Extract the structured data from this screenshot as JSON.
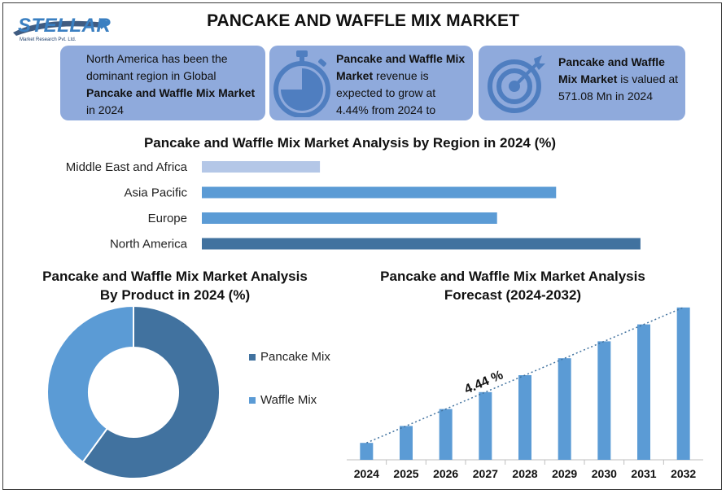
{
  "header": {
    "title": "PANCAKE AND WAFFLE MIX MARKET",
    "logo_text": "STELLAR",
    "logo_subtext": "Market Research Pvt. Ltd."
  },
  "info_cards": [
    {
      "text1": "North America has been the dominant region in Global ",
      "bold": "Pancake and Waffle Mix Market",
      "text2": " in 2024"
    },
    {
      "bold": "Pancake and Waffle Mix Market",
      "text2": " revenue is expected to grow at 4.44% from 2024 to"
    },
    {
      "bold": "Pancake and Waffle Mix Market",
      "text2": " is valued at 571.08 Mn in 2024"
    }
  ],
  "colors": {
    "card_bg": "#8faadc",
    "icon": "#4f7ec0",
    "bar_light": "#b4c7e7",
    "bar_mid": "#5b9bd5",
    "bar_dark": "#41729f",
    "pancake": "#41729f",
    "waffle": "#5b9bd5",
    "forecast_bar": "#5b9bd5"
  },
  "chart_data": [
    {
      "type": "bar",
      "orientation": "horizontal",
      "title": "Pancake and Waffle Mix Market Analysis by Region in 2024 (%)",
      "categories": [
        "Middle East and Africa",
        "Asia Pacific",
        "Europe",
        "North America"
      ],
      "values": [
        14,
        42,
        35,
        52
      ],
      "xlim": [
        0,
        55
      ],
      "grid": false
    },
    {
      "type": "pie",
      "variant": "donut",
      "title": "Pancake and Waffle Mix Market Analysis By Product in 2024 (%)",
      "categories": [
        "Pancake Mix",
        "Waffle Mix"
      ],
      "values": [
        60,
        40
      ],
      "legend": "right"
    },
    {
      "type": "bar",
      "title": "Pancake and Waffle Mix Market Analysis Forecast (2024-2032)",
      "categories": [
        "2024",
        "2025",
        "2026",
        "2027",
        "2028",
        "2029",
        "2030",
        "2031",
        "2032"
      ],
      "values": [
        10,
        20,
        30,
        40,
        50,
        60,
        70,
        80,
        90
      ],
      "ylim": [
        0,
        100
      ],
      "annotation": "4.44 %",
      "trendline": true
    }
  ]
}
